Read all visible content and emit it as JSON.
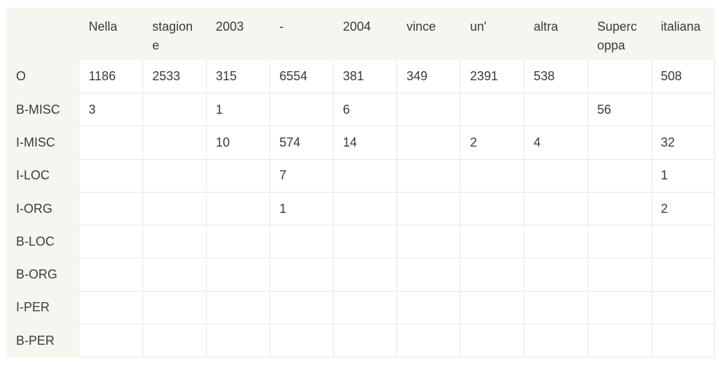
{
  "table": {
    "columns": [
      "",
      "Nella",
      "stagione",
      "2003",
      "-",
      "2004",
      "vince",
      "un'",
      "altra",
      "Supercoppa",
      "italiana"
    ],
    "rows": [
      {
        "label": "O",
        "cells": [
          "1186",
          "2533",
          "315",
          "6554",
          "381",
          "349",
          "2391",
          "538",
          "",
          "508"
        ]
      },
      {
        "label": "B-MISC",
        "cells": [
          "3",
          "",
          "1",
          "",
          "6",
          "",
          "",
          "",
          "56",
          ""
        ]
      },
      {
        "label": "I-MISC",
        "cells": [
          "",
          "",
          "10",
          "574",
          "14",
          "",
          "2",
          "4",
          "",
          "32"
        ]
      },
      {
        "label": "I-LOC",
        "cells": [
          "",
          "",
          "",
          "7",
          "",
          "",
          "",
          "",
          "",
          "1"
        ]
      },
      {
        "label": "I-ORG",
        "cells": [
          "",
          "",
          "",
          "1",
          "",
          "",
          "",
          "",
          "",
          "2"
        ]
      },
      {
        "label": "B-LOC",
        "cells": [
          "",
          "",
          "",
          "",
          "",
          "",
          "",
          "",
          "",
          ""
        ]
      },
      {
        "label": "B-ORG",
        "cells": [
          "",
          "",
          "",
          "",
          "",
          "",
          "",
          "",
          "",
          ""
        ]
      },
      {
        "label": "I-PER",
        "cells": [
          "",
          "",
          "",
          "",
          "",
          "",
          "",
          "",
          "",
          ""
        ]
      },
      {
        "label": "B-PER",
        "cells": [
          "",
          "",
          "",
          "",
          "",
          "",
          "",
          "",
          "",
          ""
        ]
      }
    ]
  }
}
